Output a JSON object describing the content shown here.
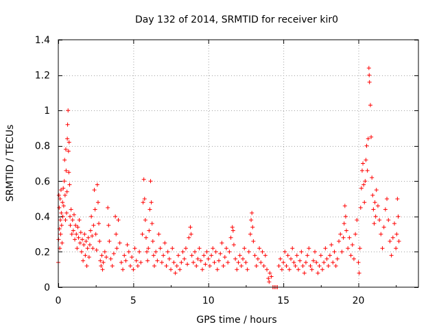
{
  "chart_data": {
    "type": "scatter",
    "title": "Day 132 of 2014, SRMTID for receiver kir0",
    "xlabel": "GPS time / hours",
    "ylabel": "SRMTID / TECUs",
    "xlim": [
      0,
      24
    ],
    "ylim": [
      0,
      1.4
    ],
    "xticks": [
      0,
      5,
      10,
      15,
      20
    ],
    "xtick_labels": [
      "0",
      "5",
      "10",
      "15",
      "20"
    ],
    "yticks": [
      0,
      0.2,
      0.4,
      0.6,
      0.8,
      1,
      1.2,
      1.4
    ],
    "ytick_labels": [
      "0",
      "0.2",
      "0.4",
      "0.6",
      "0.8",
      "1",
      "1.2",
      "1.4"
    ],
    "grid": true,
    "marker": "+",
    "color": "#ff0000",
    "series": [
      {
        "name": "SRMTID",
        "points": [
          [
            0.0,
            0.14
          ],
          [
            0.02,
            0.27
          ],
          [
            0.04,
            0.52
          ],
          [
            0.06,
            0.45
          ],
          [
            0.08,
            0.33
          ],
          [
            0.1,
            0.22
          ],
          [
            0.12,
            0.5
          ],
          [
            0.14,
            0.38
          ],
          [
            0.16,
            0.3
          ],
          [
            0.18,
            0.55
          ],
          [
            0.2,
            0.42
          ],
          [
            0.22,
            0.35
          ],
          [
            0.25,
            0.25
          ],
          [
            0.28,
            0.48
          ],
          [
            0.3,
            0.4
          ],
          [
            0.33,
            0.56
          ],
          [
            0.36,
            0.46
          ],
          [
            0.4,
            0.6
          ],
          [
            0.42,
            0.72
          ],
          [
            0.45,
            0.52
          ],
          [
            0.48,
            0.38
          ],
          [
            0.5,
            0.78
          ],
          [
            0.52,
            0.66
          ],
          [
            0.55,
            0.42
          ],
          [
            0.58,
            0.54
          ],
          [
            0.6,
            0.84
          ],
          [
            0.62,
            0.92
          ],
          [
            0.65,
            1.0
          ],
          [
            0.68,
            0.77
          ],
          [
            0.7,
            0.65
          ],
          [
            0.72,
            0.82
          ],
          [
            0.75,
            0.58
          ],
          [
            0.78,
            0.4
          ],
          [
            0.8,
            0.35
          ],
          [
            0.85,
            0.44
          ],
          [
            0.9,
            0.3
          ],
          [
            0.95,
            0.38
          ],
          [
            1.0,
            0.32
          ],
          [
            1.05,
            0.41
          ],
          [
            1.1,
            0.27
          ],
          [
            1.15,
            0.35
          ],
          [
            1.2,
            0.3
          ],
          [
            1.25,
            0.22
          ],
          [
            1.3,
            0.34
          ],
          [
            1.35,
            0.28
          ],
          [
            1.4,
            0.38
          ],
          [
            1.45,
            0.25
          ],
          [
            1.5,
            0.31
          ],
          [
            1.55,
            0.2
          ],
          [
            1.6,
            0.27
          ],
          [
            1.65,
            0.15
          ],
          [
            1.7,
            0.24
          ],
          [
            1.75,
            0.3
          ],
          [
            1.8,
            0.18
          ],
          [
            1.85,
            0.26
          ],
          [
            1.9,
            0.12
          ],
          [
            1.95,
            0.22
          ],
          [
            2.0,
            0.28
          ],
          [
            2.05,
            0.17
          ],
          [
            2.1,
            0.24
          ],
          [
            2.15,
            0.32
          ],
          [
            2.2,
            0.4
          ],
          [
            2.25,
            0.29
          ],
          [
            2.3,
            0.22
          ],
          [
            2.35,
            0.35
          ],
          [
            2.4,
            0.55
          ],
          [
            2.45,
            0.44
          ],
          [
            2.5,
            0.3
          ],
          [
            2.55,
            0.21
          ],
          [
            2.6,
            0.58
          ],
          [
            2.65,
            0.48
          ],
          [
            2.7,
            0.36
          ],
          [
            2.75,
            0.26
          ],
          [
            2.8,
            0.15
          ],
          [
            2.85,
            0.12
          ],
          [
            2.9,
            0.18
          ],
          [
            2.95,
            0.1
          ],
          [
            3.0,
            0.14
          ],
          [
            3.1,
            0.2
          ],
          [
            3.2,
            0.17
          ],
          [
            3.3,
            0.45
          ],
          [
            3.35,
            0.35
          ],
          [
            3.4,
            0.26
          ],
          [
            3.5,
            0.16
          ],
          [
            3.6,
            0.12
          ],
          [
            3.7,
            0.19
          ],
          [
            3.8,
            0.4
          ],
          [
            3.85,
            0.3
          ],
          [
            3.9,
            0.22
          ],
          [
            4.0,
            0.38
          ],
          [
            4.1,
            0.25
          ],
          [
            4.2,
            0.14
          ],
          [
            4.3,
            0.1
          ],
          [
            4.4,
            0.18
          ],
          [
            4.5,
            0.15
          ],
          [
            4.6,
            0.24
          ],
          [
            4.7,
            0.2
          ],
          [
            4.8,
            0.12
          ],
          [
            4.9,
            0.17
          ],
          [
            5.0,
            0.1
          ],
          [
            5.1,
            0.22
          ],
          [
            5.2,
            0.15
          ],
          [
            5.3,
            0.12
          ],
          [
            5.4,
            0.2
          ],
          [
            5.5,
            0.14
          ],
          [
            5.6,
            0.3
          ],
          [
            5.65,
            0.48
          ],
          [
            5.7,
            0.61
          ],
          [
            5.75,
            0.5
          ],
          [
            5.8,
            0.38
          ],
          [
            5.85,
            0.28
          ],
          [
            5.9,
            0.2
          ],
          [
            5.95,
            0.15
          ],
          [
            6.0,
            0.22
          ],
          [
            6.05,
            0.32
          ],
          [
            6.1,
            0.44
          ],
          [
            6.15,
            0.6
          ],
          [
            6.2,
            0.48
          ],
          [
            6.25,
            0.36
          ],
          [
            6.3,
            0.26
          ],
          [
            6.35,
            0.18
          ],
          [
            6.4,
            0.12
          ],
          [
            6.5,
            0.2
          ],
          [
            6.6,
            0.15
          ],
          [
            6.7,
            0.3
          ],
          [
            6.8,
            0.22
          ],
          [
            6.9,
            0.14
          ],
          [
            7.0,
            0.18
          ],
          [
            7.1,
            0.25
          ],
          [
            7.2,
            0.12
          ],
          [
            7.3,
            0.2
          ],
          [
            7.4,
            0.16
          ],
          [
            7.5,
            0.1
          ],
          [
            7.6,
            0.22
          ],
          [
            7.7,
            0.14
          ],
          [
            7.8,
            0.08
          ],
          [
            7.9,
            0.12
          ],
          [
            8.0,
            0.18
          ],
          [
            8.1,
            0.1
          ],
          [
            8.2,
            0.14
          ],
          [
            8.3,
            0.2
          ],
          [
            8.4,
            0.16
          ],
          [
            8.5,
            0.22
          ],
          [
            8.6,
            0.13
          ],
          [
            8.7,
            0.28
          ],
          [
            8.8,
            0.34
          ],
          [
            8.85,
            0.3
          ],
          [
            8.9,
            0.18
          ],
          [
            9.0,
            0.14
          ],
          [
            9.1,
            0.2
          ],
          [
            9.2,
            0.12
          ],
          [
            9.3,
            0.16
          ],
          [
            9.4,
            0.22
          ],
          [
            9.5,
            0.15
          ],
          [
            9.6,
            0.1
          ],
          [
            9.7,
            0.18
          ],
          [
            9.8,
            0.13
          ],
          [
            9.9,
            0.2
          ],
          [
            10.0,
            0.16
          ],
          [
            10.1,
            0.12
          ],
          [
            10.2,
            0.18
          ],
          [
            10.3,
            0.22
          ],
          [
            10.4,
            0.14
          ],
          [
            10.5,
            0.2
          ],
          [
            10.6,
            0.1
          ],
          [
            10.7,
            0.15
          ],
          [
            10.8,
            0.19
          ],
          [
            10.9,
            0.25
          ],
          [
            11.0,
            0.12
          ],
          [
            11.1,
            0.17
          ],
          [
            11.2,
            0.22
          ],
          [
            11.3,
            0.14
          ],
          [
            11.4,
            0.2
          ],
          [
            11.5,
            0.28
          ],
          [
            11.6,
            0.34
          ],
          [
            11.65,
            0.32
          ],
          [
            11.7,
            0.24
          ],
          [
            11.8,
            0.16
          ],
          [
            11.9,
            0.1
          ],
          [
            12.0,
            0.14
          ],
          [
            12.1,
            0.18
          ],
          [
            12.2,
            0.12
          ],
          [
            12.3,
            0.16
          ],
          [
            12.4,
            0.22
          ],
          [
            12.5,
            0.14
          ],
          [
            12.6,
            0.1
          ],
          [
            12.7,
            0.2
          ],
          [
            12.8,
            0.3
          ],
          [
            12.85,
            0.38
          ],
          [
            12.9,
            0.42
          ],
          [
            12.95,
            0.34
          ],
          [
            13.0,
            0.26
          ],
          [
            13.1,
            0.18
          ],
          [
            13.2,
            0.12
          ],
          [
            13.3,
            0.16
          ],
          [
            13.4,
            0.22
          ],
          [
            13.5,
            0.14
          ],
          [
            13.6,
            0.2
          ],
          [
            13.7,
            0.12
          ],
          [
            13.8,
            0.18
          ],
          [
            13.9,
            0.1
          ],
          [
            14.0,
            0.05
          ],
          [
            14.05,
            0.03
          ],
          [
            14.1,
            0.08
          ],
          [
            14.2,
            0.06
          ],
          [
            14.3,
            0.0
          ],
          [
            14.4,
            0.0
          ],
          [
            14.5,
            0.0
          ],
          [
            14.6,
            0.0
          ],
          [
            14.7,
            0.12
          ],
          [
            14.8,
            0.16
          ],
          [
            14.9,
            0.1
          ],
          [
            15.0,
            0.14
          ],
          [
            15.1,
            0.2
          ],
          [
            15.2,
            0.12
          ],
          [
            15.3,
            0.18
          ],
          [
            15.4,
            0.1
          ],
          [
            15.5,
            0.16
          ],
          [
            15.6,
            0.22
          ],
          [
            15.7,
            0.14
          ],
          [
            15.8,
            0.12
          ],
          [
            15.9,
            0.18
          ],
          [
            16.0,
            0.1
          ],
          [
            16.1,
            0.15
          ],
          [
            16.2,
            0.2
          ],
          [
            16.3,
            0.12
          ],
          [
            16.4,
            0.08
          ],
          [
            16.5,
            0.14
          ],
          [
            16.6,
            0.18
          ],
          [
            16.7,
            0.22
          ],
          [
            16.8,
            0.12
          ],
          [
            16.9,
            0.1
          ],
          [
            17.0,
            0.15
          ],
          [
            17.1,
            0.2
          ],
          [
            17.2,
            0.14
          ],
          [
            17.3,
            0.08
          ],
          [
            17.4,
            0.12
          ],
          [
            17.5,
            0.18
          ],
          [
            17.6,
            0.1
          ],
          [
            17.7,
            0.14
          ],
          [
            17.8,
            0.22
          ],
          [
            17.9,
            0.16
          ],
          [
            18.0,
            0.12
          ],
          [
            18.1,
            0.18
          ],
          [
            18.2,
            0.24
          ],
          [
            18.3,
            0.14
          ],
          [
            18.4,
            0.2
          ],
          [
            18.5,
            0.12
          ],
          [
            18.6,
            0.16
          ],
          [
            18.7,
            0.26
          ],
          [
            18.8,
            0.3
          ],
          [
            18.9,
            0.2
          ],
          [
            19.0,
            0.28
          ],
          [
            19.05,
            0.36
          ],
          [
            19.1,
            0.46
          ],
          [
            19.15,
            0.4
          ],
          [
            19.2,
            0.32
          ],
          [
            19.3,
            0.22
          ],
          [
            19.4,
            0.28
          ],
          [
            19.5,
            0.18
          ],
          [
            19.6,
            0.24
          ],
          [
            19.7,
            0.16
          ],
          [
            19.8,
            0.3
          ],
          [
            19.9,
            0.38
          ],
          [
            20.0,
            0.14
          ],
          [
            20.05,
            0.08
          ],
          [
            20.1,
            0.22
          ],
          [
            20.15,
            0.45
          ],
          [
            20.2,
            0.56
          ],
          [
            20.25,
            0.66
          ],
          [
            20.3,
            0.7
          ],
          [
            20.35,
            0.58
          ],
          [
            20.4,
            0.48
          ],
          [
            20.45,
            0.6
          ],
          [
            20.5,
            0.72
          ],
          [
            20.55,
            0.8
          ],
          [
            20.6,
            0.66
          ],
          [
            20.65,
            0.84
          ],
          [
            20.7,
            1.24
          ],
          [
            20.72,
            1.2
          ],
          [
            20.74,
            1.16
          ],
          [
            20.8,
            1.03
          ],
          [
            20.85,
            0.85
          ],
          [
            20.9,
            0.62
          ],
          [
            20.95,
            0.52
          ],
          [
            21.0,
            0.44
          ],
          [
            21.05,
            0.36
          ],
          [
            21.1,
            0.48
          ],
          [
            21.15,
            0.4
          ],
          [
            21.2,
            0.55
          ],
          [
            21.3,
            0.46
          ],
          [
            21.4,
            0.38
          ],
          [
            21.5,
            0.3
          ],
          [
            21.6,
            0.22
          ],
          [
            21.7,
            0.34
          ],
          [
            21.8,
            0.44
          ],
          [
            21.9,
            0.5
          ],
          [
            22.0,
            0.38
          ],
          [
            22.1,
            0.26
          ],
          [
            22.2,
            0.18
          ],
          [
            22.3,
            0.28
          ],
          [
            22.4,
            0.36
          ],
          [
            22.5,
            0.22
          ],
          [
            22.55,
            0.3
          ],
          [
            22.6,
            0.5
          ],
          [
            22.65,
            0.4
          ],
          [
            22.7,
            0.26
          ]
        ]
      }
    ]
  }
}
